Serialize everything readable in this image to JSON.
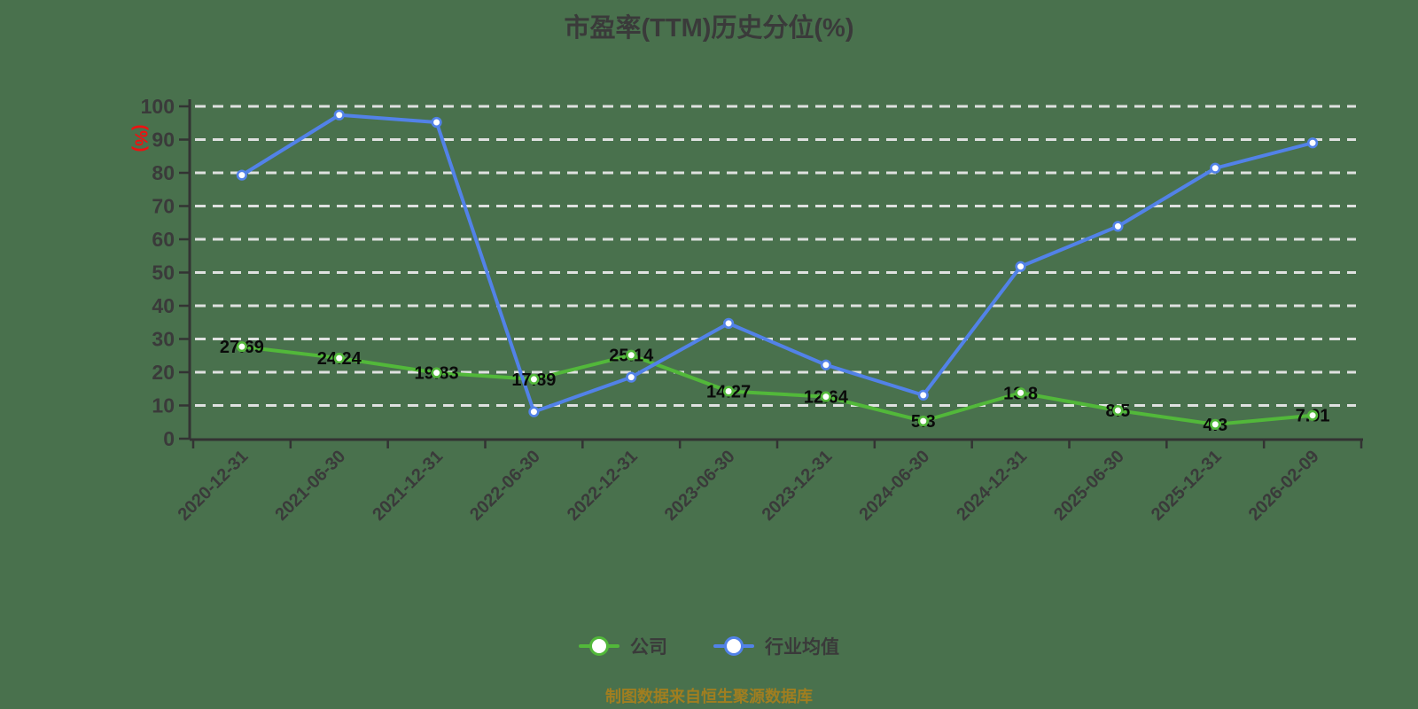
{
  "title": "市盈率(TTM)历史分位(%)",
  "y_axis_name": "(%)",
  "footer_note": "制图数据来自恒生聚源数据库",
  "colors": {
    "background": "#49714D",
    "title_text": "#3A3A3A",
    "axis_text": "#3A3A3A",
    "axis_line": "#333333",
    "grid_line": "#E8E8E8",
    "data_label": "#0A0A0A",
    "marker_fill": "#FFFFFF",
    "company_green": "#52B83A",
    "industry_blue": "#5282E8",
    "unit_label_red": "#EE1111",
    "footer_gold": "#A07E20"
  },
  "legend": {
    "items": [
      {
        "label": "公司",
        "color": "#52B83A"
      },
      {
        "label": "行业均值",
        "color": "#5282E8"
      }
    ]
  },
  "chart_data": {
    "type": "line",
    "title": "市盈率(TTM)历史分位(%)",
    "ylabel": "(%)",
    "xlabel": "",
    "ylim": [
      0,
      100
    ],
    "y_ticks": [
      0,
      10,
      20,
      30,
      40,
      50,
      60,
      70,
      80,
      90,
      100
    ],
    "grid": "horizontal white dashed lines",
    "legend_position": "bottom",
    "categories": [
      "2020-12-31",
      "2021-06-30",
      "2021-12-31",
      "2022-06-30",
      "2022-12-31",
      "2023-06-30",
      "2023-12-31",
      "2024-06-30",
      "2024-12-31",
      "2025-06-30",
      "2025-12-31",
      "2026-02-09"
    ],
    "series": [
      {
        "name": "公司",
        "color": "#52B83A",
        "values": [
          27.69,
          24.24,
          19.83,
          17.89,
          25.14,
          14.27,
          12.64,
          5.3,
          13.8,
          8.5,
          4.3,
          7.01
        ],
        "data_labels": [
          "27.69",
          "24.24",
          "19.83",
          "17.89",
          "25.14",
          "14.27",
          "12.64",
          "5.3",
          "13.8",
          "8.5",
          "4.3",
          "7.01"
        ],
        "labels_visible": true
      },
      {
        "name": "行业均值",
        "color": "#5282E8",
        "values": [
          79.3,
          97.4,
          95.2,
          8.1,
          18.5,
          34.7,
          22.2,
          13.1,
          51.8,
          63.9,
          81.4,
          89.0
        ],
        "labels_visible": false
      }
    ]
  }
}
